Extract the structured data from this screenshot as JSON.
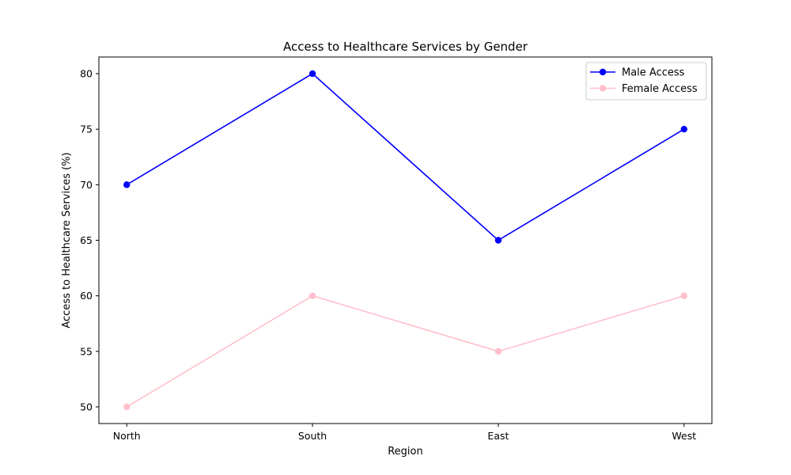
{
  "chart_data": {
    "type": "line",
    "title": "Access to Healthcare Services by Gender",
    "xlabel": "Region",
    "ylabel": "Access to Healthcare Services (%)",
    "categories": [
      "North",
      "South",
      "East",
      "West"
    ],
    "series": [
      {
        "name": "Male Access",
        "values": [
          70,
          80,
          65,
          75
        ],
        "color": "#0000ff"
      },
      {
        "name": "Female Access",
        "values": [
          50,
          60,
          55,
          60
        ],
        "color": "#ffc0cb"
      }
    ],
    "ylim": [
      48.5,
      81.5
    ],
    "yticks": [
      50,
      55,
      60,
      65,
      70,
      75,
      80
    ],
    "grid": false,
    "legend_position": "top-right"
  }
}
